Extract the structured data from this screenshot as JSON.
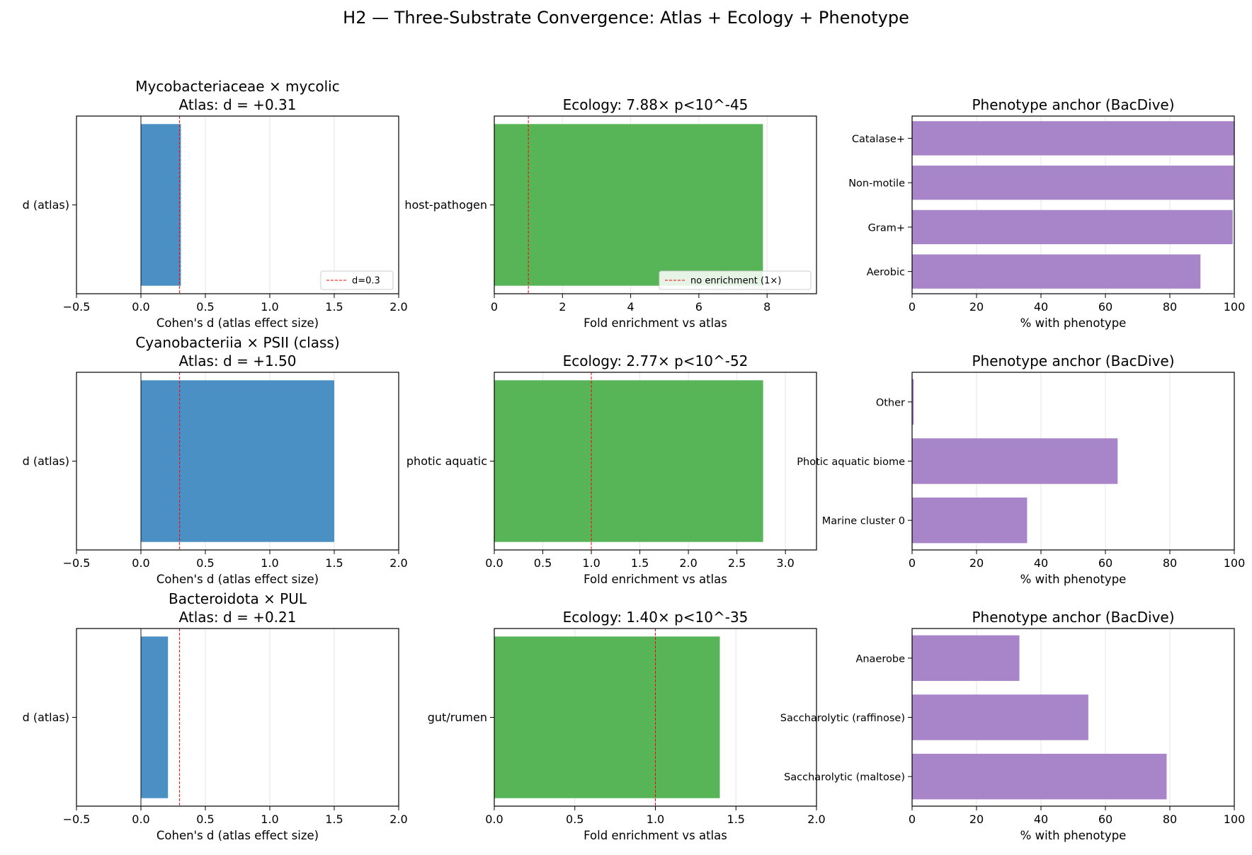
{
  "figure": {
    "suptitle": "H2 — Three-Substrate Convergence: Atlas + Ecology + Phenotype"
  },
  "colors": {
    "atlas": "#4a90c4",
    "ecology": "#57b457",
    "phenotype": "#a885c8",
    "reference": "#ff0000",
    "grid": "#e6e6e6"
  },
  "chart_data": [
    {
      "type": "bar",
      "orientation": "horizontal",
      "title_lines": [
        "Mycobacteriaceae × mycolic",
        "Atlas: d = +0.31"
      ],
      "categories": [
        "d (atlas)"
      ],
      "values": [
        0.31
      ],
      "xlabel": "Cohen's d (atlas effect size)",
      "ylabel": "",
      "xlim": [
        -0.5,
        2.0
      ],
      "xticks": [
        -0.5,
        0.0,
        0.5,
        1.0,
        1.5,
        2.0
      ],
      "tick_decimals": 1,
      "reference_line": 0.3,
      "legend": "d=0.3",
      "legend_loc": "lower-right",
      "zero_line": true,
      "grid": true,
      "color_key": "atlas"
    },
    {
      "type": "bar",
      "orientation": "horizontal",
      "title_lines": [
        "Ecology: 7.88× p<10^-45"
      ],
      "categories": [
        "host-pathogen"
      ],
      "values": [
        7.88
      ],
      "xlabel": "Fold enrichment vs atlas",
      "ylabel": "",
      "xlim": [
        0,
        9.45
      ],
      "xticks": [
        0,
        2,
        4,
        6,
        8
      ],
      "tick_decimals": 0,
      "reference_line": 1.0,
      "legend": "no enrichment (1×)",
      "legend_loc": "lower-right",
      "zero_line": false,
      "grid": true,
      "color_key": "ecology"
    },
    {
      "type": "bar",
      "orientation": "horizontal",
      "title_lines": [
        "Phenotype anchor (BacDive)"
      ],
      "categories": [
        "Aerobic",
        "Gram+",
        "Non-motile",
        "Catalase+"
      ],
      "values": [
        89.5,
        99.5,
        99.8,
        100
      ],
      "xlabel": "% with phenotype",
      "ylabel": "",
      "xlim": [
        0,
        100
      ],
      "xticks": [
        0,
        20,
        40,
        60,
        80,
        100
      ],
      "tick_decimals": 0,
      "reference_line": null,
      "legend": "",
      "legend_loc": "",
      "zero_line": false,
      "grid": true,
      "color_key": "phenotype"
    },
    {
      "type": "bar",
      "orientation": "horizontal",
      "title_lines": [
        "Cyanobacteriia × PSII (class)",
        "Atlas: d = +1.50"
      ],
      "categories": [
        "d (atlas)"
      ],
      "values": [
        1.5
      ],
      "xlabel": "Cohen's d (atlas effect size)",
      "ylabel": "",
      "xlim": [
        -0.5,
        2.0
      ],
      "xticks": [
        -0.5,
        0.0,
        0.5,
        1.0,
        1.5,
        2.0
      ],
      "tick_decimals": 1,
      "reference_line": 0.3,
      "legend": "",
      "legend_loc": "",
      "zero_line": true,
      "grid": true,
      "color_key": "atlas"
    },
    {
      "type": "bar",
      "orientation": "horizontal",
      "title_lines": [
        "Ecology: 2.77× p<10^-52"
      ],
      "categories": [
        "photic aquatic"
      ],
      "values": [
        2.77
      ],
      "xlabel": "Fold enrichment vs atlas",
      "ylabel": "",
      "xlim": [
        0,
        3.32
      ],
      "xticks": [
        0.0,
        0.5,
        1.0,
        1.5,
        2.0,
        2.5,
        3.0
      ],
      "tick_decimals": 1,
      "reference_line": 1.0,
      "legend": "",
      "legend_loc": "",
      "zero_line": false,
      "grid": true,
      "color_key": "ecology"
    },
    {
      "type": "bar",
      "orientation": "horizontal",
      "title_lines": [
        "Phenotype anchor (BacDive)"
      ],
      "categories": [
        "Marine cluster 0",
        "Photic aquatic biome",
        "Other"
      ],
      "values": [
        35.7,
        63.8,
        0.5
      ],
      "xlabel": "% with phenotype",
      "ylabel": "",
      "xlim": [
        0,
        100
      ],
      "xticks": [
        0,
        20,
        40,
        60,
        80,
        100
      ],
      "tick_decimals": 0,
      "reference_line": null,
      "legend": "",
      "legend_loc": "",
      "zero_line": false,
      "grid": true,
      "color_key": "phenotype"
    },
    {
      "type": "bar",
      "orientation": "horizontal",
      "title_lines": [
        "Bacteroidota × PUL",
        "Atlas: d = +0.21"
      ],
      "categories": [
        "d (atlas)"
      ],
      "values": [
        0.21
      ],
      "xlabel": "Cohen's d (atlas effect size)",
      "ylabel": "",
      "xlim": [
        -0.5,
        2.0
      ],
      "xticks": [
        -0.5,
        0.0,
        0.5,
        1.0,
        1.5,
        2.0
      ],
      "tick_decimals": 1,
      "reference_line": 0.3,
      "legend": "",
      "legend_loc": "",
      "zero_line": true,
      "grid": true,
      "color_key": "atlas"
    },
    {
      "type": "bar",
      "orientation": "horizontal",
      "title_lines": [
        "Ecology: 1.40× p<10^-35"
      ],
      "categories": [
        "gut/rumen"
      ],
      "values": [
        1.4
      ],
      "xlabel": "Fold enrichment vs atlas",
      "ylabel": "",
      "xlim": [
        0,
        2.0
      ],
      "xticks": [
        0.0,
        0.5,
        1.0,
        1.5,
        2.0
      ],
      "tick_decimals": 1,
      "reference_line": 1.0,
      "legend": "",
      "legend_loc": "",
      "zero_line": false,
      "grid": true,
      "color_key": "ecology"
    },
    {
      "type": "bar",
      "orientation": "horizontal",
      "title_lines": [
        "Phenotype anchor (BacDive)"
      ],
      "categories": [
        "Saccharolytic (maltose)",
        "Saccharolytic (raffinose)",
        "Anaerobe"
      ],
      "values": [
        79.0,
        54.7,
        33.3
      ],
      "xlabel": "% with phenotype",
      "ylabel": "",
      "xlim": [
        0,
        100
      ],
      "xticks": [
        0,
        20,
        40,
        60,
        80,
        100
      ],
      "tick_decimals": 0,
      "reference_line": null,
      "legend": "",
      "legend_loc": "",
      "zero_line": false,
      "grid": true,
      "color_key": "phenotype"
    }
  ]
}
